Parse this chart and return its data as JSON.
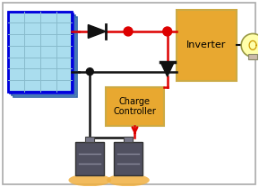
{
  "bg_color": "#ffffff",
  "border_color": "#aaaaaa",
  "solar_panel": {
    "fill_color": "#aaddee",
    "border_color": "#0000dd",
    "grid_color": "#88bbcc",
    "shadow_color": "#3366aa"
  },
  "inverter_box": {
    "fill": "#e8a830",
    "border": "#ccaa44",
    "label": "Inverter",
    "fontsize": 8
  },
  "charge_box": {
    "fill": "#e8a830",
    "border": "#ccaa44",
    "label": "Charge\nController",
    "fontsize": 7
  },
  "wire_red": "#dd0000",
  "wire_black": "#111111",
  "dot_red": "#dd0000",
  "dot_black": "#111111",
  "diode_color": "#111111",
  "lw": 1.8
}
